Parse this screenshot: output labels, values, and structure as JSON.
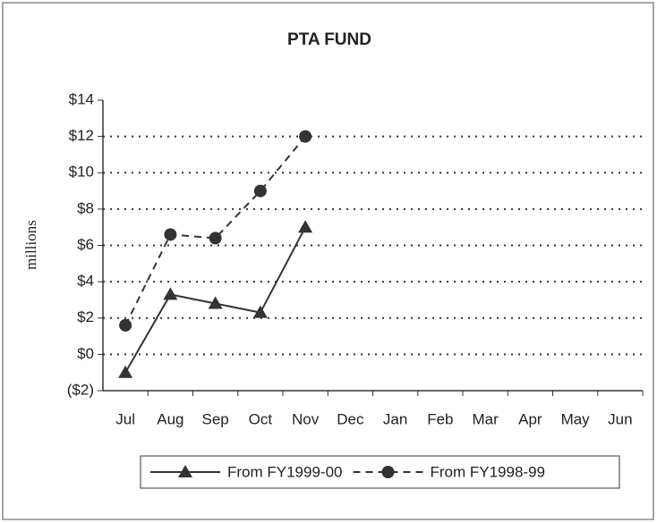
{
  "chart_data": {
    "type": "line",
    "title": "PTA  FUND",
    "y_label": "millions",
    "categories": [
      "Jul",
      "Aug",
      "Sep",
      "Oct",
      "Nov",
      "Dec",
      "Jan",
      "Feb",
      "Mar",
      "Apr",
      "May",
      "Jun"
    ],
    "series": [
      {
        "name": "From FY1999-00",
        "color": "#333333",
        "marker": "triangle",
        "dash": "solid",
        "values": [
          -1,
          3.3,
          2.8,
          2.3,
          7.0,
          null,
          null,
          null,
          null,
          null,
          null,
          null
        ]
      },
      {
        "name": "From FY1998-99",
        "color": "#333333",
        "marker": "circle",
        "dash": "dashed",
        "values": [
          1.6,
          6.6,
          6.4,
          9.0,
          12.0,
          null,
          null,
          null,
          null,
          null,
          null,
          null
        ]
      }
    ],
    "ylim": [
      -2,
      14
    ],
    "yticks": [
      {
        "value": -2,
        "label": "($2)"
      },
      {
        "value": 0,
        "label": "$0"
      },
      {
        "value": 2,
        "label": "$2"
      },
      {
        "value": 4,
        "label": "$4"
      },
      {
        "value": 6,
        "label": "$6"
      },
      {
        "value": 8,
        "label": "$8"
      },
      {
        "value": 10,
        "label": "$10"
      },
      {
        "value": 12,
        "label": "$12"
      },
      {
        "value": 14,
        "label": "$14"
      }
    ],
    "grid": true,
    "legend": "bottom"
  }
}
